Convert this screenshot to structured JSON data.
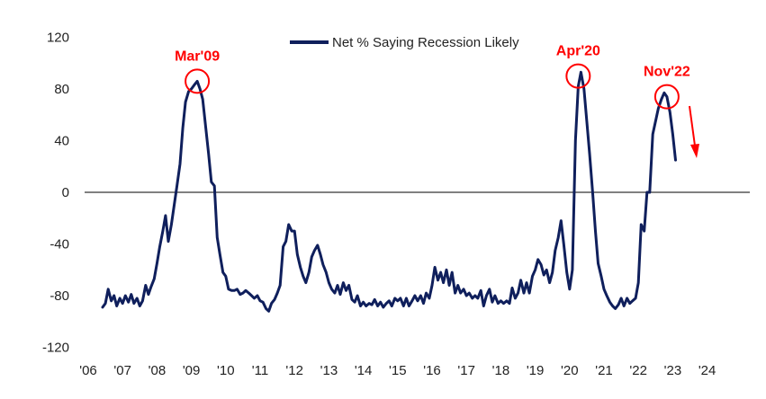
{
  "chart_data": {
    "type": "line",
    "title": "",
    "xlabel": "",
    "ylabel": "",
    "ylim": [
      -120,
      120
    ],
    "xlim": [
      2006,
      2024.9
    ],
    "yticks": [
      120,
      80,
      40,
      0,
      -40,
      -80,
      -120
    ],
    "xticks": [
      {
        "value": 2006,
        "label": "'06"
      },
      {
        "value": 2007,
        "label": "'07"
      },
      {
        "value": 2008,
        "label": "'08"
      },
      {
        "value": 2009,
        "label": "'09"
      },
      {
        "value": 2010,
        "label": "'10"
      },
      {
        "value": 2011,
        "label": "'11"
      },
      {
        "value": 2012,
        "label": "'12"
      },
      {
        "value": 2013,
        "label": "'13"
      },
      {
        "value": 2014,
        "label": "'14"
      },
      {
        "value": 2015,
        "label": "'15"
      },
      {
        "value": 2016,
        "label": "'16"
      },
      {
        "value": 2017,
        "label": "'17"
      },
      {
        "value": 2018,
        "label": "'18"
      },
      {
        "value": 2019,
        "label": "'19"
      },
      {
        "value": 2020,
        "label": "'20"
      },
      {
        "value": 2021,
        "label": "'21"
      },
      {
        "value": 2022,
        "label": "'22"
      },
      {
        "value": 2023,
        "label": "'23"
      },
      {
        "value": 2024,
        "label": "'24"
      }
    ],
    "grid": false,
    "zero_line": true,
    "legend": "top-center",
    "series": [
      {
        "name": "Net % Saying Recession Likely",
        "color": "#0f1f5c",
        "points": [
          [
            2006.42,
            -89
          ],
          [
            2006.5,
            -86
          ],
          [
            2006.58,
            -75
          ],
          [
            2006.67,
            -84
          ],
          [
            2006.75,
            -80
          ],
          [
            2006.83,
            -88
          ],
          [
            2006.92,
            -82
          ],
          [
            2007.0,
            -86
          ],
          [
            2007.08,
            -80
          ],
          [
            2007.17,
            -85
          ],
          [
            2007.25,
            -79
          ],
          [
            2007.33,
            -86
          ],
          [
            2007.42,
            -82
          ],
          [
            2007.5,
            -88
          ],
          [
            2007.58,
            -84
          ],
          [
            2007.67,
            -72
          ],
          [
            2007.75,
            -79
          ],
          [
            2007.83,
            -73
          ],
          [
            2007.92,
            -67
          ],
          [
            2008.0,
            -55
          ],
          [
            2008.08,
            -42
          ],
          [
            2008.17,
            -30
          ],
          [
            2008.25,
            -18
          ],
          [
            2008.33,
            -38
          ],
          [
            2008.42,
            -25
          ],
          [
            2008.5,
            -10
          ],
          [
            2008.58,
            5
          ],
          [
            2008.67,
            22
          ],
          [
            2008.75,
            50
          ],
          [
            2008.83,
            70
          ],
          [
            2008.92,
            78
          ],
          [
            2009.0,
            80
          ],
          [
            2009.08,
            83
          ],
          [
            2009.17,
            86
          ],
          [
            2009.25,
            80
          ],
          [
            2009.33,
            72
          ],
          [
            2009.42,
            50
          ],
          [
            2009.5,
            30
          ],
          [
            2009.58,
            8
          ],
          [
            2009.67,
            5
          ],
          [
            2009.75,
            -35
          ],
          [
            2009.83,
            -48
          ],
          [
            2009.92,
            -62
          ],
          [
            2010.0,
            -65
          ],
          [
            2010.08,
            -75
          ],
          [
            2010.17,
            -76
          ],
          [
            2010.25,
            -76
          ],
          [
            2010.33,
            -75
          ],
          [
            2010.42,
            -79
          ],
          [
            2010.5,
            -78
          ],
          [
            2010.58,
            -76
          ],
          [
            2010.67,
            -78
          ],
          [
            2010.75,
            -80
          ],
          [
            2010.83,
            -82
          ],
          [
            2010.92,
            -80
          ],
          [
            2011.0,
            -84
          ],
          [
            2011.08,
            -85
          ],
          [
            2011.17,
            -90
          ],
          [
            2011.25,
            -92
          ],
          [
            2011.33,
            -86
          ],
          [
            2011.42,
            -83
          ],
          [
            2011.5,
            -78
          ],
          [
            2011.58,
            -72
          ],
          [
            2011.67,
            -42
          ],
          [
            2011.75,
            -38
          ],
          [
            2011.83,
            -25
          ],
          [
            2011.92,
            -30
          ],
          [
            2012.0,
            -30
          ],
          [
            2012.08,
            -48
          ],
          [
            2012.17,
            -58
          ],
          [
            2012.25,
            -65
          ],
          [
            2012.33,
            -70
          ],
          [
            2012.42,
            -62
          ],
          [
            2012.5,
            -50
          ],
          [
            2012.58,
            -45
          ],
          [
            2012.67,
            -41
          ],
          [
            2012.75,
            -48
          ],
          [
            2012.83,
            -56
          ],
          [
            2012.92,
            -62
          ],
          [
            2013.0,
            -70
          ],
          [
            2013.08,
            -75
          ],
          [
            2013.17,
            -78
          ],
          [
            2013.25,
            -72
          ],
          [
            2013.33,
            -79
          ],
          [
            2013.42,
            -70
          ],
          [
            2013.5,
            -76
          ],
          [
            2013.58,
            -72
          ],
          [
            2013.67,
            -83
          ],
          [
            2013.75,
            -85
          ],
          [
            2013.83,
            -80
          ],
          [
            2013.92,
            -88
          ],
          [
            2014.0,
            -85
          ],
          [
            2014.08,
            -88
          ],
          [
            2014.17,
            -86
          ],
          [
            2014.25,
            -87
          ],
          [
            2014.33,
            -83
          ],
          [
            2014.42,
            -88
          ],
          [
            2014.5,
            -85
          ],
          [
            2014.58,
            -89
          ],
          [
            2014.67,
            -86
          ],
          [
            2014.75,
            -84
          ],
          [
            2014.83,
            -88
          ],
          [
            2014.92,
            -82
          ],
          [
            2015.0,
            -84
          ],
          [
            2015.08,
            -82
          ],
          [
            2015.17,
            -88
          ],
          [
            2015.25,
            -82
          ],
          [
            2015.33,
            -88
          ],
          [
            2015.42,
            -84
          ],
          [
            2015.5,
            -80
          ],
          [
            2015.58,
            -84
          ],
          [
            2015.67,
            -80
          ],
          [
            2015.75,
            -86
          ],
          [
            2015.83,
            -78
          ],
          [
            2015.92,
            -82
          ],
          [
            2016.0,
            -72
          ],
          [
            2016.08,
            -58
          ],
          [
            2016.17,
            -68
          ],
          [
            2016.25,
            -62
          ],
          [
            2016.33,
            -70
          ],
          [
            2016.42,
            -60
          ],
          [
            2016.5,
            -72
          ],
          [
            2016.58,
            -62
          ],
          [
            2016.67,
            -78
          ],
          [
            2016.75,
            -72
          ],
          [
            2016.83,
            -78
          ],
          [
            2016.92,
            -75
          ],
          [
            2017.0,
            -80
          ],
          [
            2017.08,
            -78
          ],
          [
            2017.17,
            -82
          ],
          [
            2017.25,
            -80
          ],
          [
            2017.33,
            -82
          ],
          [
            2017.42,
            -76
          ],
          [
            2017.5,
            -88
          ],
          [
            2017.58,
            -80
          ],
          [
            2017.67,
            -75
          ],
          [
            2017.75,
            -85
          ],
          [
            2017.83,
            -80
          ],
          [
            2017.92,
            -86
          ],
          [
            2018.0,
            -84
          ],
          [
            2018.08,
            -86
          ],
          [
            2018.17,
            -84
          ],
          [
            2018.25,
            -86
          ],
          [
            2018.33,
            -74
          ],
          [
            2018.42,
            -82
          ],
          [
            2018.5,
            -78
          ],
          [
            2018.58,
            -68
          ],
          [
            2018.67,
            -78
          ],
          [
            2018.75,
            -70
          ],
          [
            2018.83,
            -78
          ],
          [
            2018.92,
            -65
          ],
          [
            2019.0,
            -60
          ],
          [
            2019.08,
            -52
          ],
          [
            2019.17,
            -56
          ],
          [
            2019.25,
            -64
          ],
          [
            2019.33,
            -60
          ],
          [
            2019.42,
            -70
          ],
          [
            2019.5,
            -62
          ],
          [
            2019.58,
            -45
          ],
          [
            2019.67,
            -35
          ],
          [
            2019.75,
            -22
          ],
          [
            2019.83,
            -40
          ],
          [
            2019.92,
            -62
          ],
          [
            2020.0,
            -75
          ],
          [
            2020.08,
            -60
          ],
          [
            2020.17,
            40
          ],
          [
            2020.25,
            82
          ],
          [
            2020.33,
            93
          ],
          [
            2020.42,
            80
          ],
          [
            2020.5,
            55
          ],
          [
            2020.58,
            30
          ],
          [
            2020.67,
            0
          ],
          [
            2020.75,
            -30
          ],
          [
            2020.83,
            -55
          ],
          [
            2020.92,
            -65
          ],
          [
            2021.0,
            -75
          ],
          [
            2021.08,
            -80
          ],
          [
            2021.17,
            -85
          ],
          [
            2021.25,
            -88
          ],
          [
            2021.33,
            -90
          ],
          [
            2021.42,
            -87
          ],
          [
            2021.5,
            -82
          ],
          [
            2021.58,
            -88
          ],
          [
            2021.67,
            -82
          ],
          [
            2021.75,
            -86
          ],
          [
            2021.83,
            -84
          ],
          [
            2021.92,
            -82
          ],
          [
            2022.0,
            -70
          ],
          [
            2022.08,
            -25
          ],
          [
            2022.17,
            -30
          ],
          [
            2022.25,
            0
          ],
          [
            2022.33,
            0
          ],
          [
            2022.42,
            45
          ],
          [
            2022.5,
            55
          ],
          [
            2022.58,
            65
          ],
          [
            2022.67,
            72
          ],
          [
            2022.75,
            77
          ],
          [
            2022.83,
            74
          ],
          [
            2022.92,
            62
          ],
          [
            2023.0,
            45
          ],
          [
            2023.08,
            25
          ]
        ]
      }
    ],
    "annotations": [
      {
        "label": "Mar'09",
        "x": 2009.17,
        "y": 86,
        "color": "#ff0000"
      },
      {
        "label": "Apr'20",
        "x": 2020.25,
        "y": 90,
        "color": "#ff0000"
      },
      {
        "label": "Nov'22",
        "x": 2022.83,
        "y": 74,
        "color": "#ff0000"
      }
    ]
  }
}
